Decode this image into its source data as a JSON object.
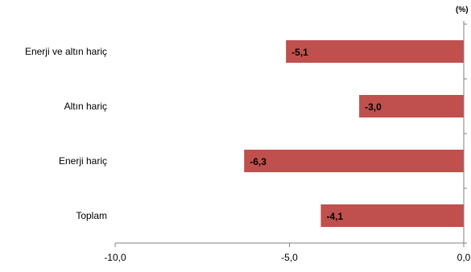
{
  "chart_data": {
    "type": "bar",
    "orientation": "horizontal",
    "unit": "(%)",
    "categories": [
      "Enerji ve altın hariç",
      "Altın hariç",
      "Enerji hariç",
      "Toplam"
    ],
    "values": [
      -5.1,
      -3.0,
      -6.3,
      -4.1
    ],
    "value_labels": [
      "-5,1",
      "-3,0",
      "-6,3",
      "-4,1"
    ],
    "xlim": [
      -10,
      0
    ],
    "ticks": [
      -10,
      -5,
      0
    ],
    "tick_labels": [
      "-10,0",
      "-5,0",
      "0,0"
    ],
    "grid": false,
    "bar_color": "#c0504d"
  }
}
